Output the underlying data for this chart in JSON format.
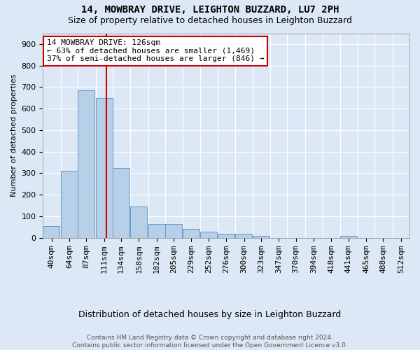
{
  "title_line1": "14, MOWBRAY DRIVE, LEIGHTON BUZZARD, LU7 2PH",
  "title_line2": "Size of property relative to detached houses in Leighton Buzzard",
  "xlabel": "Distribution of detached houses by size in Leighton Buzzard",
  "ylabel": "Number of detached properties",
  "footer_line1": "Contains HM Land Registry data © Crown copyright and database right 2024.",
  "footer_line2": "Contains public sector information licensed under the Open Government Licence v3.0.",
  "annotation_title": "14 MOWBRAY DRIVE: 126sqm",
  "annotation_line1": "← 63% of detached houses are smaller (1,469)",
  "annotation_line2": "37% of semi-detached houses are larger (846) →",
  "bar_color": "#b8cfe8",
  "bar_edge_color": "#6699cc",
  "red_line_color": "#cc0000",
  "red_line_x": 126,
  "categories": [
    "40sqm",
    "64sqm",
    "87sqm",
    "111sqm",
    "134sqm",
    "158sqm",
    "182sqm",
    "205sqm",
    "229sqm",
    "252sqm",
    "276sqm",
    "300sqm",
    "323sqm",
    "347sqm",
    "370sqm",
    "394sqm",
    "418sqm",
    "441sqm",
    "465sqm",
    "488sqm",
    "512sqm"
  ],
  "bin_edges": [
    40,
    64,
    87,
    111,
    134,
    158,
    182,
    205,
    229,
    252,
    276,
    300,
    323,
    347,
    370,
    394,
    418,
    441,
    465,
    488,
    512
  ],
  "bin_width": 23,
  "values": [
    55,
    310,
    685,
    650,
    325,
    145,
    65,
    65,
    40,
    30,
    20,
    20,
    10,
    0,
    0,
    0,
    0,
    8,
    0,
    0,
    0
  ],
  "ylim": [
    0,
    950
  ],
  "yticks": [
    0,
    100,
    200,
    300,
    400,
    500,
    600,
    700,
    800,
    900
  ],
  "background_color": "#dce8f5",
  "plot_background": "#dce8f5",
  "grid_color": "#ffffff",
  "annotation_box_facecolor": "#ffffff",
  "annotation_box_edgecolor": "#cc0000",
  "title_fontsize": 10,
  "subtitle_fontsize": 9,
  "ylabel_fontsize": 8,
  "xlabel_fontsize": 9,
  "tick_fontsize": 8,
  "footer_fontsize": 6.5,
  "annotation_fontsize": 8
}
